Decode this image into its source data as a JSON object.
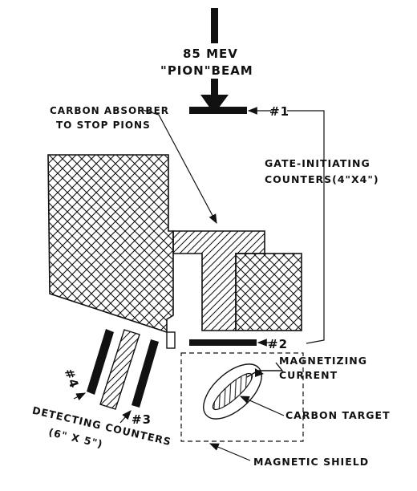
{
  "beam": {
    "line1": "85 MEV",
    "line2": "\"PION\"BEAM"
  },
  "absorber": {
    "line1": "CARBON ABSORBER",
    "line2": "TO STOP PIONS"
  },
  "gate_counters": {
    "line1": "GATE-INITIATING",
    "line2": "COUNTERS(4\"X4\")"
  },
  "counter_labels": {
    "c1": "#1",
    "c2": "#2",
    "c3": "#3",
    "c4": "#4"
  },
  "magnetizing": {
    "line1": "MAGNETIZING",
    "line2": "CURRENT"
  },
  "target": {
    "label": "CARBON TARGET"
  },
  "detecting": {
    "line1": "DETECTING COUNTERS",
    "line2": "(6\" X 5\")"
  },
  "shield": {
    "label": "MAGNETIC SHIELD"
  },
  "colors": {
    "ink": "#111111",
    "background": "#ffffff"
  }
}
